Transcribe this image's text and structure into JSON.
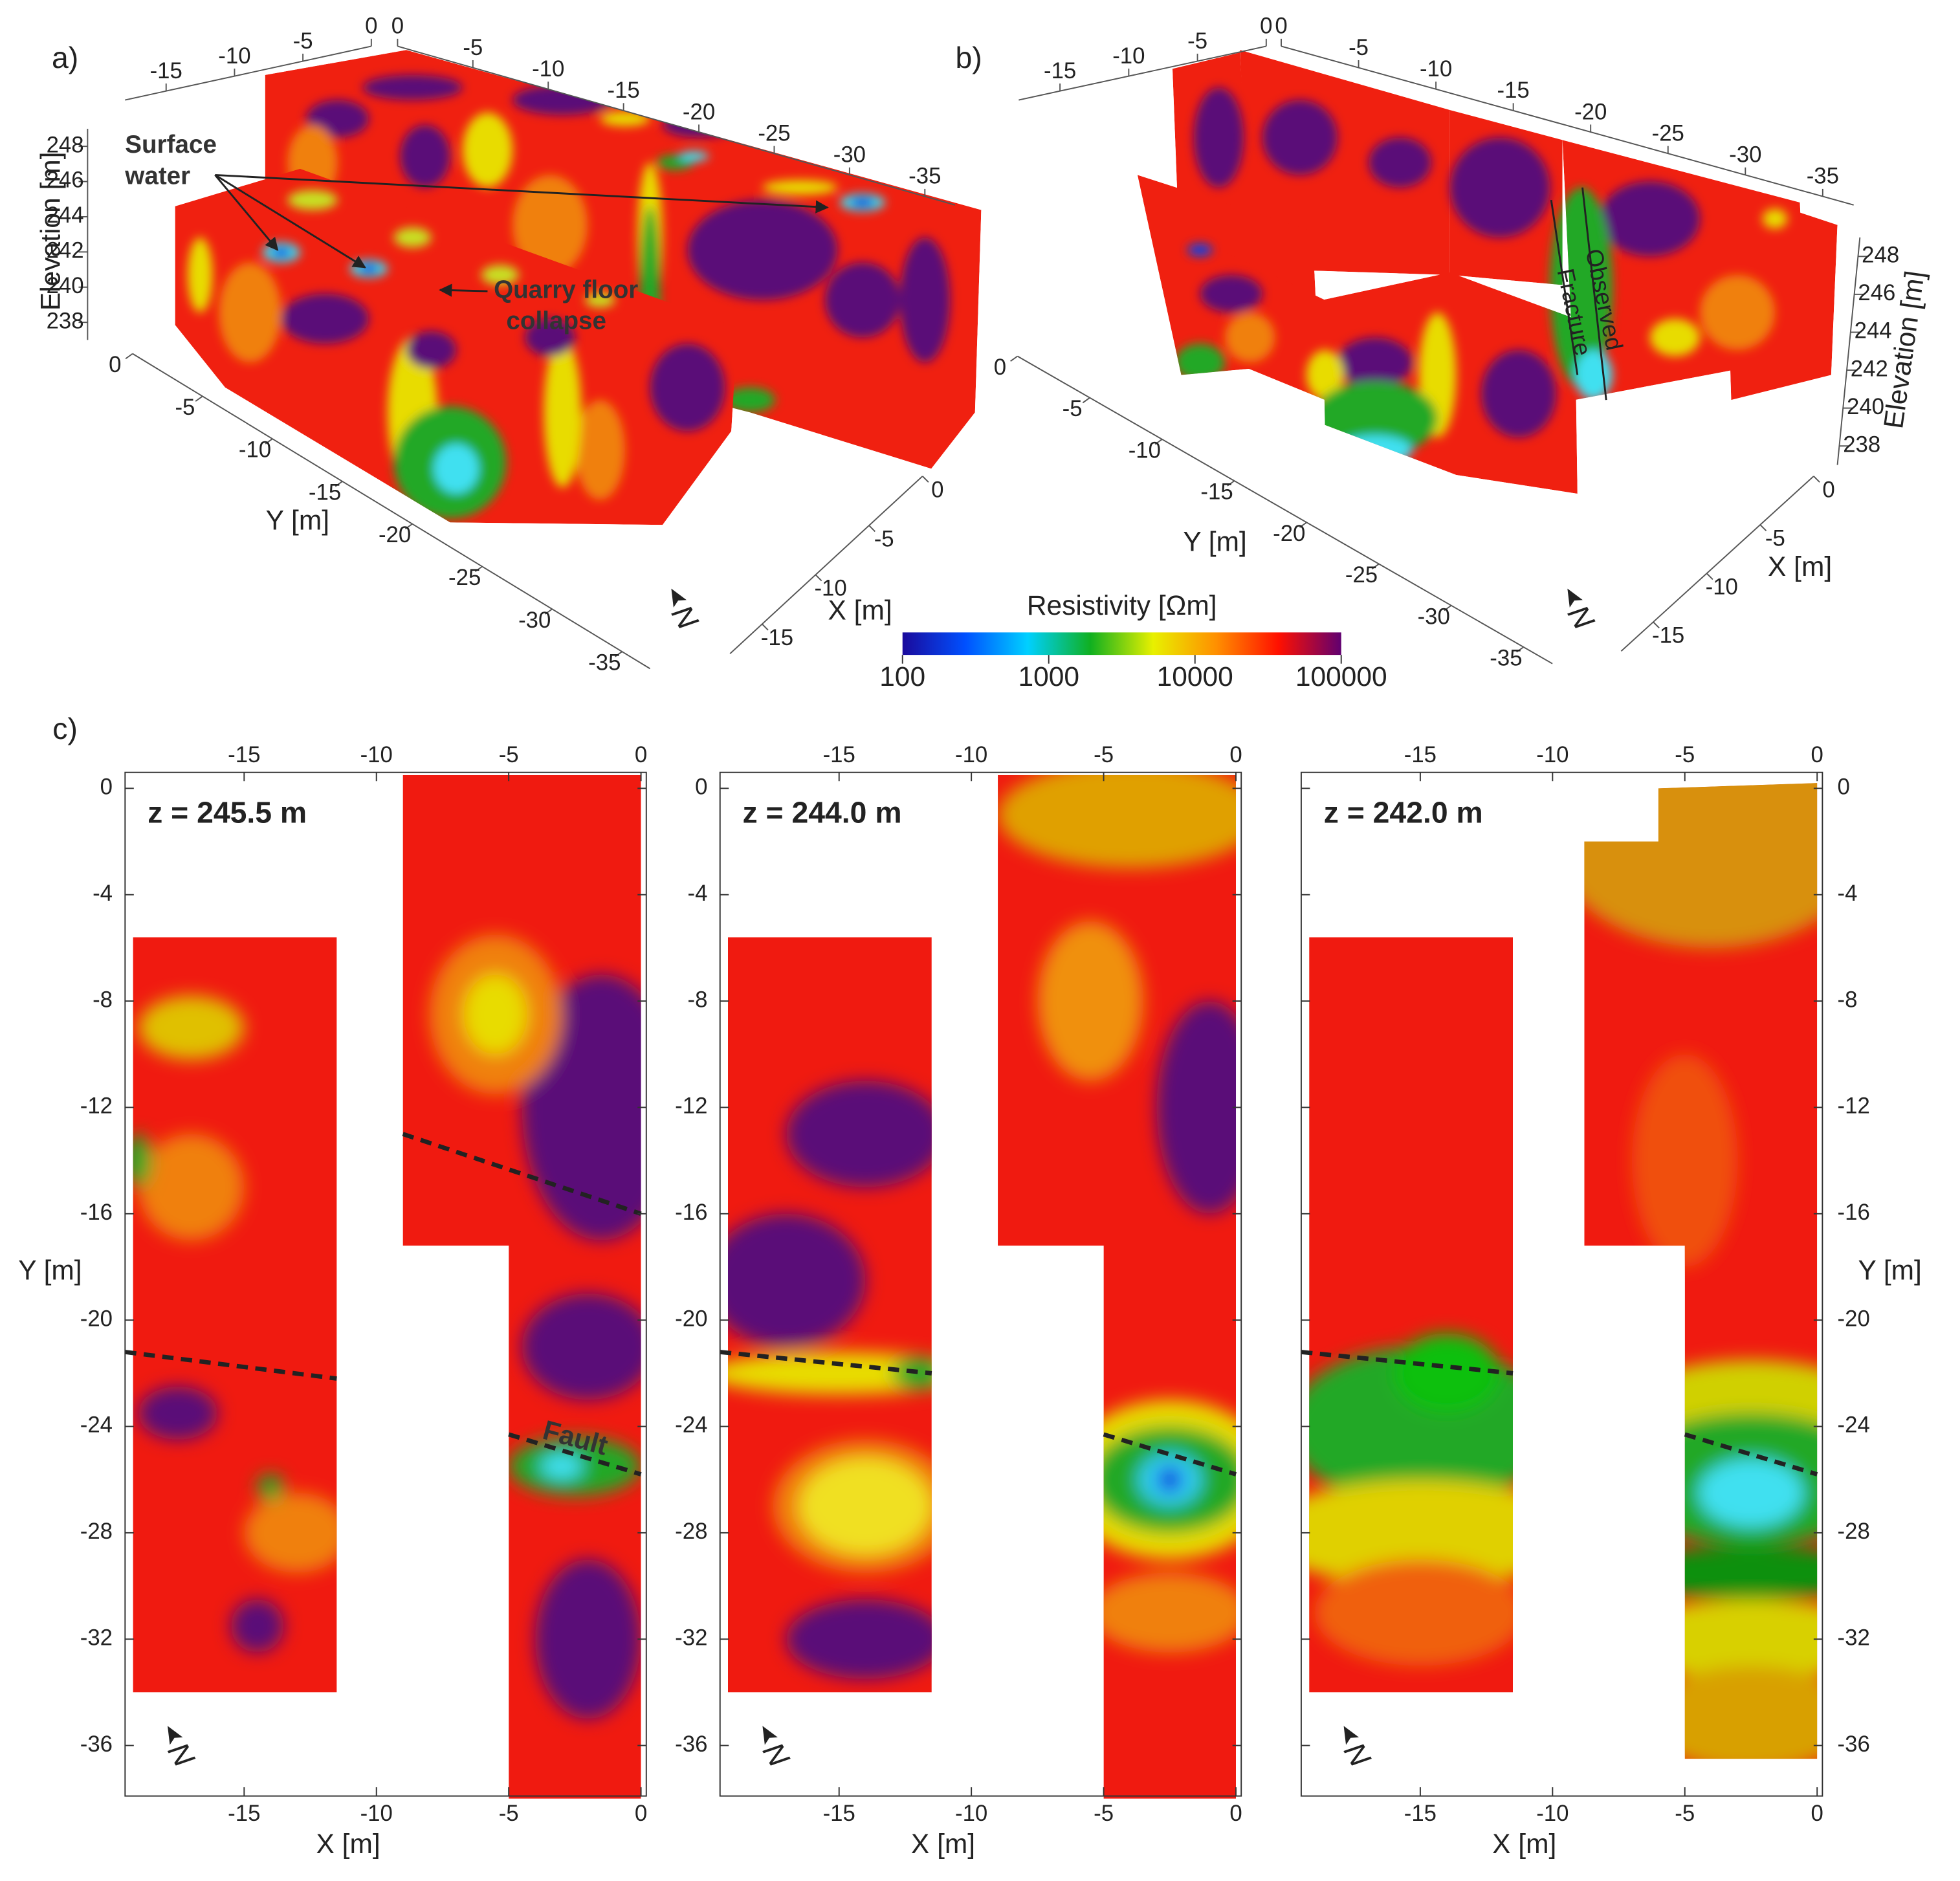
{
  "chart_data": [
    {
      "type": "volume3d",
      "panel_label": "a)",
      "x_label": "X [m]",
      "y_label": "Y [m]",
      "z_label": "Elevation [m]",
      "xlim": [
        0,
        -18
      ],
      "ylim": [
        0,
        -37
      ],
      "zlim": [
        237,
        249
      ],
      "xticks": [
        0,
        -5,
        -10,
        -15
      ],
      "yticks": [
        0,
        -5,
        -10,
        -15,
        -20,
        -25,
        -30,
        -35
      ],
      "zticks": [
        238,
        240,
        242,
        244,
        246,
        248
      ],
      "annotations": [
        [
          "Surface",
          "water"
        ],
        [
          "Quarry floor",
          "collapse"
        ]
      ],
      "north_label": "N"
    },
    {
      "type": "volume3d",
      "panel_label": "b)",
      "x_label": "X [m]",
      "y_label": "Y [m]",
      "z_label": "Elevation [m]",
      "xlim": [
        0,
        -18
      ],
      "ylim": [
        0,
        -37
      ],
      "zlim": [
        237,
        249
      ],
      "xticks": [
        0,
        -5,
        -10,
        -15
      ],
      "yticks": [
        0,
        -5,
        -10,
        -15,
        -20,
        -25,
        -30,
        -35
      ],
      "zticks": [
        238,
        240,
        242,
        244,
        246,
        248
      ],
      "annotations": [
        [
          "Observed",
          "Fracture"
        ]
      ],
      "north_label": "N"
    },
    {
      "type": "colorbar",
      "title": "Resistivity [Ωm]",
      "log_scale": true,
      "lim": [
        100,
        100000
      ],
      "ticks": [
        100,
        1000,
        10000,
        100000
      ],
      "colors": [
        "#1a0a9c",
        "#0050ff",
        "#00d0ff",
        "#10b020",
        "#e8f000",
        "#ff9000",
        "#ff1000",
        "#600070"
      ]
    },
    {
      "type": "heatmap",
      "panel_label": "c)",
      "title": "z = 245.5 m",
      "x_label": "X [m]",
      "y_label": "Y [m]",
      "y_axis": "left",
      "xlim": [
        -19.5,
        0.2
      ],
      "ylim": [
        -37.9,
        0.6
      ],
      "xticks": [
        -15,
        -10,
        -5,
        0
      ],
      "yticks": [
        0,
        -4,
        -8,
        -12,
        -16,
        -20,
        -24,
        -28,
        -32,
        -36
      ],
      "annotations": [
        "Fault"
      ],
      "north_label": "N"
    },
    {
      "type": "heatmap",
      "title": "z = 244.0 m",
      "x_label": "X [m]",
      "y_axis": "left",
      "xlim": [
        -19.5,
        0.2
      ],
      "ylim": [
        -37.9,
        0.6
      ],
      "xticks": [
        -15,
        -10,
        -5,
        0
      ],
      "yticks": [
        0,
        -4,
        -8,
        -12,
        -16,
        -20,
        -24,
        -28,
        -32,
        -36
      ],
      "north_label": "N"
    },
    {
      "type": "heatmap",
      "title": "z = 242.0 m",
      "x_label": "X [m]",
      "y_label": "Y [m]",
      "y_axis": "right",
      "xlim": [
        -19.5,
        0.2
      ],
      "ylim": [
        -37.9,
        0.6
      ],
      "xticks": [
        -15,
        -10,
        -5,
        0
      ],
      "yticks": [
        0,
        -4,
        -8,
        -12,
        -16,
        -20,
        -24,
        -28,
        -32,
        -36
      ],
      "north_label": "N"
    }
  ]
}
